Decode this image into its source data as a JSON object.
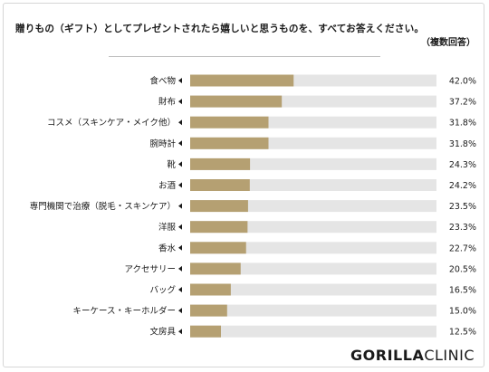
{
  "title": "贈りもの（ギフト）としてプレゼントされたら嬉しいと思うものを、すべてお答えください。",
  "note": "（複数回答）",
  "logo": {
    "part1": "GORILLA",
    "part2": "CLINIC"
  },
  "colors": {
    "bar": "#b5a072",
    "track": "#e5e5e5",
    "text": "#1a1a1a"
  },
  "chart_data": {
    "type": "bar",
    "orientation": "horizontal",
    "categories": [
      "食べ物",
      "財布",
      "コスメ（スキンケア・メイク他）",
      "腕時計",
      "靴",
      "お酒",
      "専門機関で治療（脱毛・スキンケア）",
      "洋服",
      "香水",
      "アクセサリー",
      "バッグ",
      "キーケース・キーホルダー",
      "文房具"
    ],
    "values": [
      42.0,
      37.2,
      31.8,
      31.8,
      24.3,
      24.2,
      23.5,
      23.3,
      22.7,
      20.5,
      16.5,
      15.0,
      12.5
    ],
    "value_labels": [
      "42.0%",
      "37.2%",
      "31.8%",
      "31.8%",
      "24.3%",
      "24.2%",
      "23.5%",
      "23.3%",
      "22.7%",
      "20.5%",
      "16.5%",
      "15.0%",
      "12.5%"
    ],
    "xlim": [
      0,
      100
    ],
    "grid": false,
    "legend": "none"
  }
}
